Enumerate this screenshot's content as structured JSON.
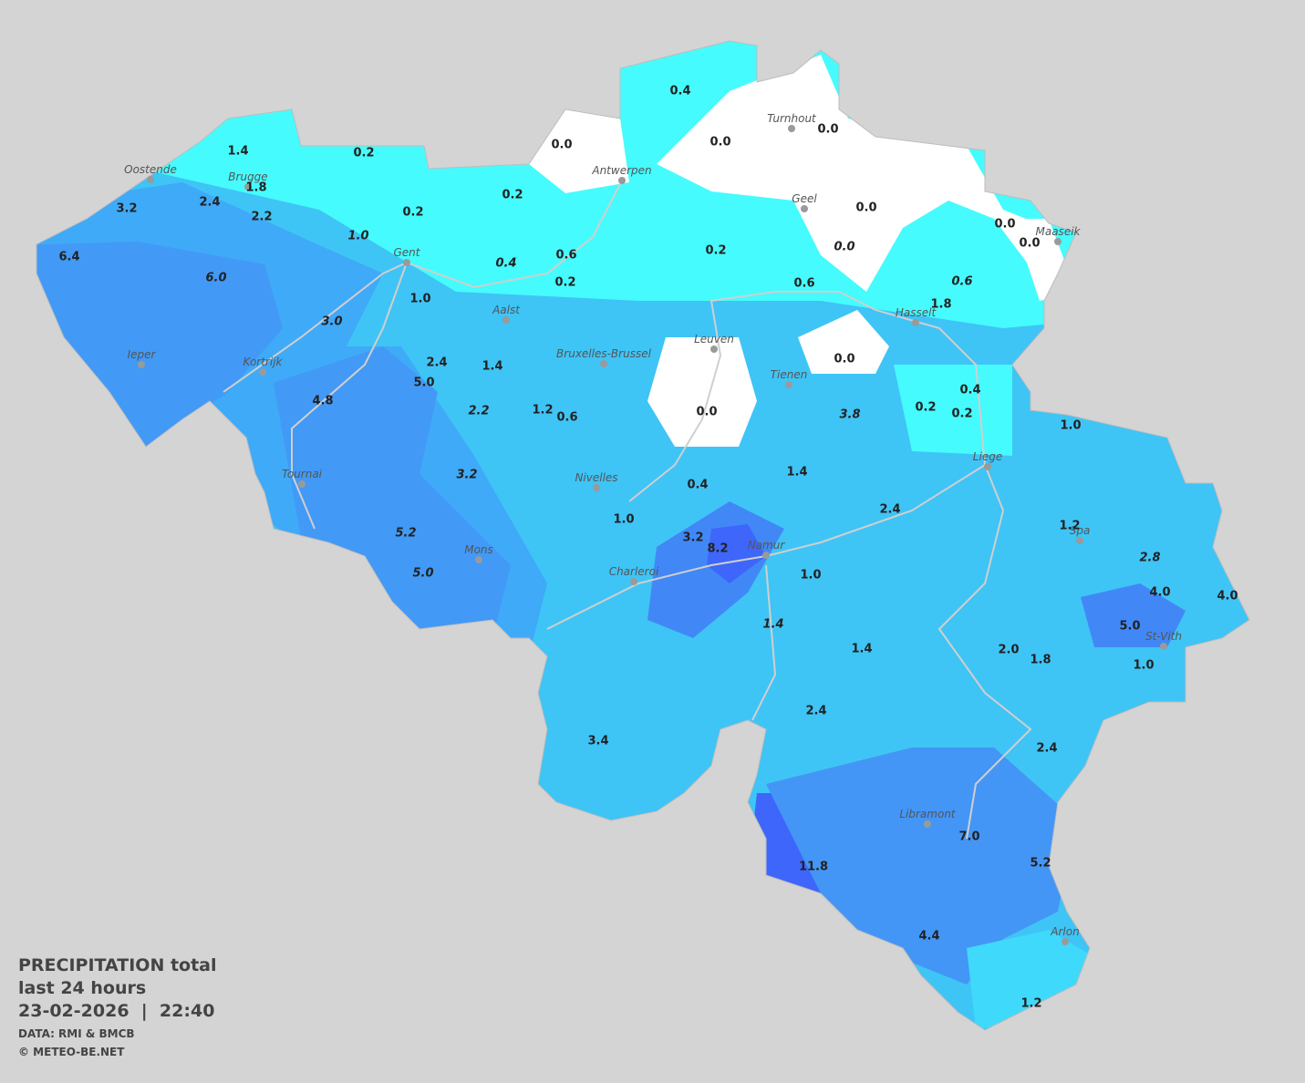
{
  "title": {
    "line1": "PRECIPITATION total",
    "line2": "last 24 hours",
    "line3": "23-02-2026  |  22:40",
    "credit1": "DATA: RMI & BMCB",
    "credit2": "© METEO-BE.NET"
  },
  "cities": [
    "Oostende",
    "Brugge",
    "Gent",
    "Antwerpen",
    "Turnhout",
    "Geel",
    "Maaseik",
    "Hasselt",
    "Aalst",
    "Leuven",
    "Bruxelles-Brussel",
    "Tienen",
    "Ieper",
    "Kortrijk",
    "Liege",
    "Nivelles",
    "Tournai",
    "Spa",
    "Namur",
    "Mons",
    "Charleroi",
    "St-Vith",
    "Libramont",
    "Arlon"
  ],
  "readings": [
    "0.4",
    "0.0",
    "0.0",
    "0.0",
    "1.4",
    "0.2",
    "1.8",
    "0.2",
    "3.2",
    "2.4",
    "2.2",
    "0.2",
    "0.0",
    "0.0",
    "0.0",
    "6.4",
    "0.6",
    "0.2",
    "0.2",
    "0.6",
    "1.8",
    "1.0",
    "0.0",
    "2.4",
    "1.4",
    "5.0",
    "0.4",
    "4.8",
    "1.2",
    "0.6",
    "0.0",
    "0.2",
    "0.2",
    "1.0",
    "1.4",
    "0.4",
    "2.4",
    "1.0",
    "1.2",
    "3.2",
    "8.2",
    "1.0",
    "4.0",
    "4.0",
    "5.0",
    "1.4",
    "2.0",
    "1.8",
    "1.0",
    "2.4",
    "3.4",
    "2.4",
    "7.0",
    "5.2",
    "11.8",
    "4.4",
    "1.2"
  ],
  "estimates": [
    "6.0",
    "1.0",
    "0.4",
    "0.0",
    "0.6",
    "3.0",
    "2.2",
    "3.8",
    "3.2",
    "2.8",
    "5.2",
    "5.0",
    "1.4"
  ]
}
